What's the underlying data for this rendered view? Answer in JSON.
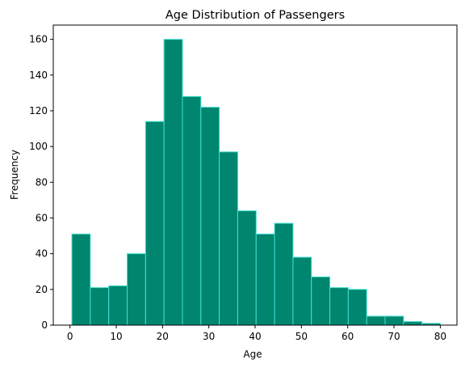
{
  "chart_data": {
    "type": "bar",
    "title": "Age Distribution of Passengers",
    "xlabel": "Age",
    "ylabel": "Frequency",
    "xlim": [
      -3.6,
      83.6
    ],
    "ylim": [
      0,
      168
    ],
    "xticks": [
      0,
      10,
      20,
      30,
      40,
      50,
      60,
      70,
      80
    ],
    "yticks": [
      0,
      20,
      40,
      60,
      80,
      100,
      120,
      140,
      160
    ],
    "bin_edges": [
      0.42,
      4.4,
      8.38,
      12.36,
      16.34,
      20.32,
      24.3,
      28.28,
      32.26,
      36.24,
      40.22,
      44.2,
      48.18,
      52.16,
      56.14,
      60.12,
      64.1,
      68.08,
      72.06,
      76.04,
      80.0
    ],
    "values": [
      51,
      21,
      22,
      40,
      114,
      160,
      128,
      122,
      97,
      64,
      51,
      57,
      38,
      27,
      21,
      20,
      5,
      5,
      2,
      1
    ],
    "bar_color": "#00856f",
    "edge_color": "#40e0d0",
    "grid": false
  }
}
